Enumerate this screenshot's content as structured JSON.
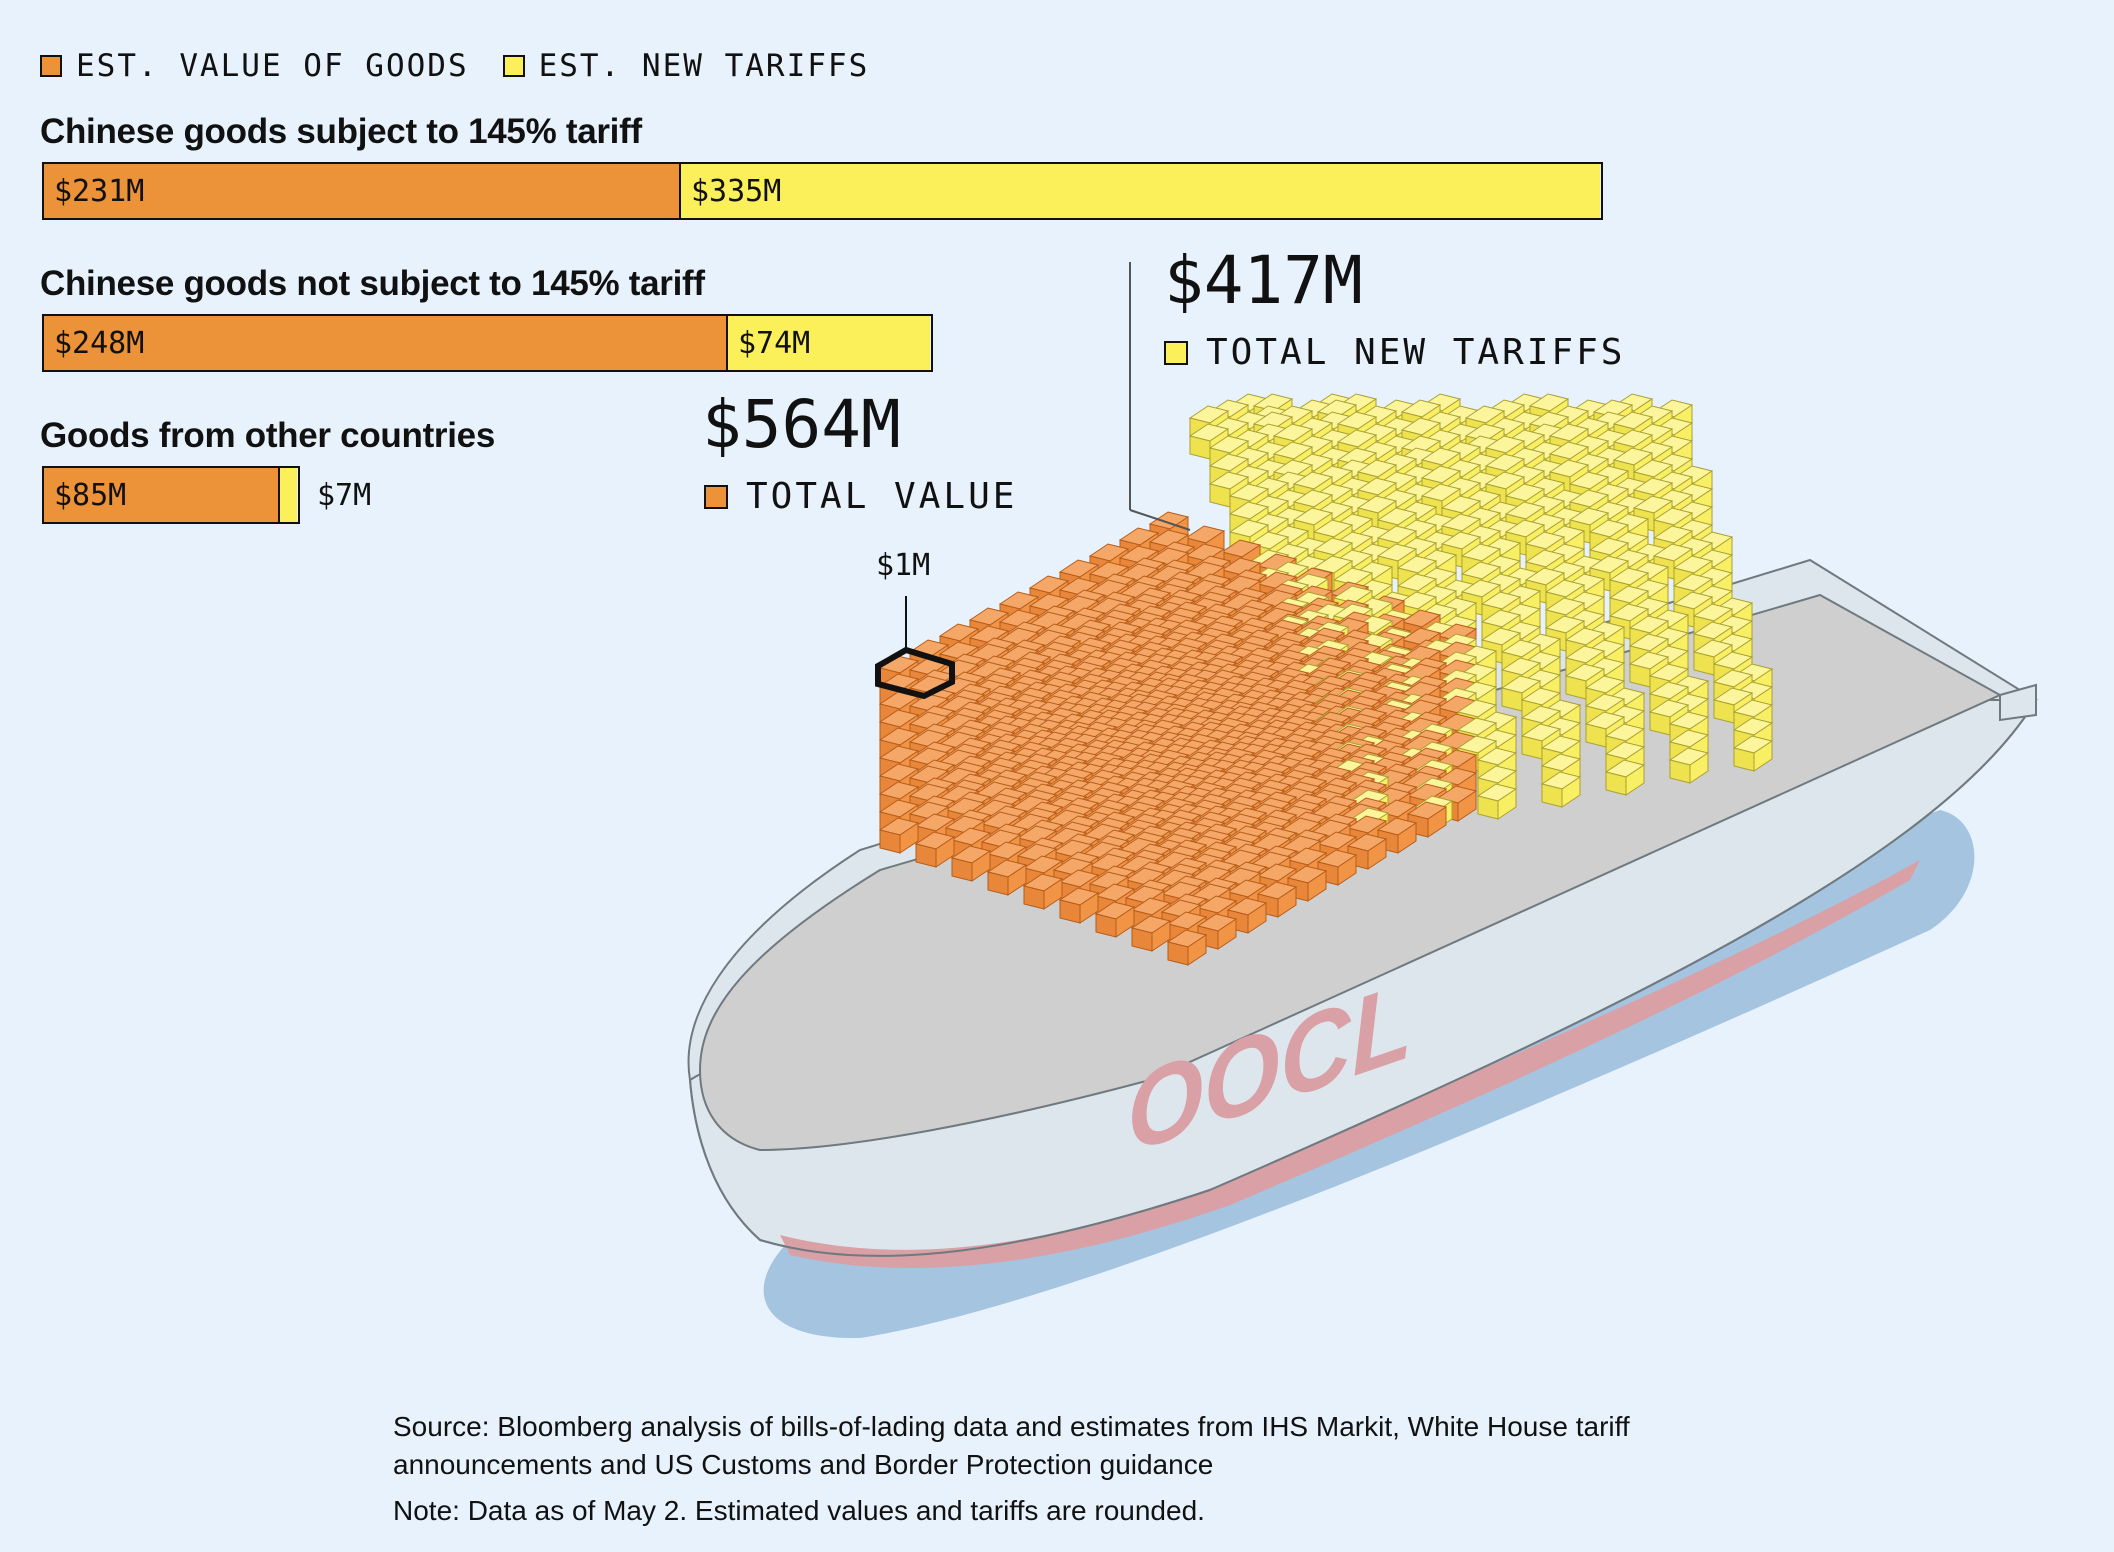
{
  "legend": {
    "goods_label": "EST. VALUE OF GOODS",
    "tariffs_label": "EST. NEW TARIFFS",
    "goods_color": "#ec9239",
    "tariffs_color": "#fbf05a"
  },
  "chart_data": {
    "type": "bar",
    "orientation": "horizontal",
    "stacked": true,
    "categories": [
      "Chinese goods subject to 145% tariff",
      "Chinese goods not subject to 145% tariff",
      "Goods from other countries"
    ],
    "series": [
      {
        "name": "EST. VALUE OF GOODS",
        "values": [
          231,
          248,
          85
        ],
        "labels": [
          "$231M",
          "$248M",
          "$85M"
        ]
      },
      {
        "name": "EST. NEW TARIFFS",
        "values": [
          335,
          74,
          7
        ],
        "labels": [
          "$335M",
          "$74M",
          "$7M"
        ]
      }
    ],
    "unit": "$M"
  },
  "summary": {
    "total_value_amount": "$564M",
    "total_value_label": "TOTAL VALUE",
    "total_tariffs_amount": "$417M",
    "total_tariffs_label": "TOTAL NEW TARIFFS",
    "unit_callout": "$1M"
  },
  "ship": {
    "logo_text": "OOCL",
    "hull_color": "#dde6ec",
    "stripe_color": "#d9a0a6",
    "shadow_color": "#a4c4e0"
  },
  "footer": {
    "source": "Source: Bloomberg analysis of bills-of-lading data and estimates from IHS Markit, White House tariff announcements and US Customs and Border Protection guidance",
    "note": "Note: Data as of May 2. Estimated values and tariffs are rounded."
  }
}
